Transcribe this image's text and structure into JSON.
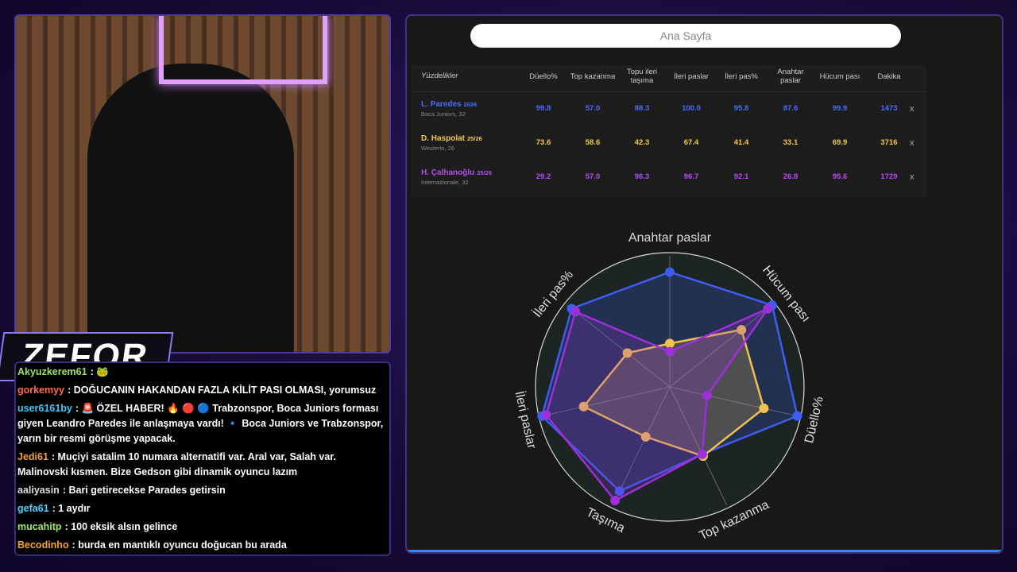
{
  "logo": "ZEFOR",
  "nav_button": "Ana Sayfa",
  "table": {
    "title": "Yüzdelikler",
    "columns": [
      "Düello%",
      "Top kazanma",
      "Topu ileri taşıma",
      "İleri paslar",
      "İleri pas%",
      "Anahtar paslar",
      "Hücum pası",
      "Dakika"
    ],
    "rows": [
      {
        "name": "L. Paredes",
        "tag": "2026",
        "club": "Boca Juniors, 32",
        "color": "#4a6cf7",
        "cells": [
          "99.8",
          "57.0",
          "88.3",
          "100.0",
          "95.8",
          "87.6",
          "99.9",
          "1473"
        ],
        "remove": "x"
      },
      {
        "name": "D. Haspolat",
        "tag": "25/26",
        "club": "Westerlo, 26",
        "color": "#f2c94c",
        "cells": [
          "73.6",
          "58.6",
          "42.3",
          "67.4",
          "41.4",
          "33.1",
          "69.9",
          "3716"
        ],
        "remove": "x"
      },
      {
        "name": "H. Çalhanoğlu",
        "tag": "25/26",
        "club": "Internazionale, 32",
        "color": "#b54cf0",
        "cells": [
          "29.2",
          "57.0",
          "96.3",
          "96.7",
          "92.1",
          "26.8",
          "95.6",
          "1729"
        ],
        "remove": "x"
      }
    ]
  },
  "chart_data": {
    "type": "radar",
    "categories": [
      "Anahtar paslar",
      "Hücum pası",
      "Düello%",
      "Top kazanma",
      "Taşıma",
      "İleri paslar",
      "İleri pas%"
    ],
    "rlim": [
      0,
      100
    ],
    "series": [
      {
        "color": "#3d5cf0",
        "values": [
          87.6,
          99.9,
          99.8,
          57.0,
          88.3,
          100.0,
          95.8
        ]
      },
      {
        "color": "#f0c050",
        "values": [
          33.1,
          69.9,
          73.6,
          58.6,
          42.3,
          67.4,
          41.4
        ]
      },
      {
        "color": "#9b30d9",
        "values": [
          26.8,
          95.6,
          29.2,
          57.0,
          96.3,
          96.7,
          92.1
        ]
      }
    ]
  },
  "chat": {
    "messages": [
      {
        "user": "Akyuzkerem61",
        "color": "#9be36b",
        "text": ": 🐸"
      },
      {
        "user": "gorkemyy",
        "color": "#ff6a4d",
        "text": ": DOĞUCANIN HAKANDAN FAZLA KİLİT PASI OLMASI, yorumsuz"
      },
      {
        "user": "user6161by",
        "color": "#35c9ff",
        "text": ": 🚨 ÖZEL HABER! 🔥 🔴 🔵 Trabzonspor, Boca Juniors forması giyen Leandro Paredes ile anlaşmaya vardı! 🔹 Boca Juniors ve Trabzonspor, yarın bir resmi görüşme yapacak."
      },
      {
        "user": "Jedi61",
        "color": "#f0a030",
        "text": ": Muçiyi satalim 10 numara alternatifi var. Aral var, Salah var. Malinovski kısmen. Bize Gedson gibi dinamik oyuncu lazım"
      },
      {
        "user": "aaliyasin",
        "color": "#dddddd",
        "text": ": Bari getirecekse Parades getirsin"
      },
      {
        "user": "gefa61",
        "color": "#54d0ff",
        "text": ": 1 aydır"
      },
      {
        "user": "mucahitp",
        "color": "#9fe870",
        "text": ": 100 eksik alsın gelince"
      },
      {
        "user": "Becodinho",
        "color": "#f5a623",
        "text": ": burda en mantıklı oyuncu doğucan bu arada"
      }
    ]
  }
}
